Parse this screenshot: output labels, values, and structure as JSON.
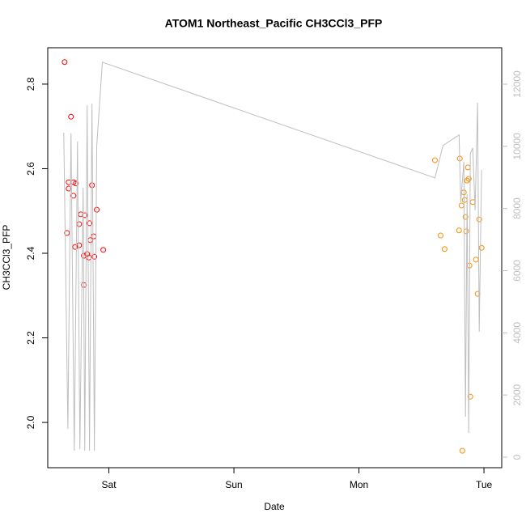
{
  "chart_data": {
    "type": "scatter",
    "title": "ATOM1 Northeast_Pacific CH3CCl3_PFP",
    "x_label": "Date",
    "y_label": "CH3CCl3_PFP",
    "xlim": [
      0.511,
      4.142
    ],
    "xticks": [
      {
        "value": 1,
        "label": "Sat"
      },
      {
        "value": 2,
        "label": "Sun"
      },
      {
        "value": 3,
        "label": "Mon"
      },
      {
        "value": 4,
        "label": "Tue"
      }
    ],
    "ylim": [
      1.893,
      2.886
    ],
    "yticks": [
      {
        "value": 2,
        "label": "2.0"
      },
      2.2,
      2.4,
      2.6,
      2.8
    ],
    "y2lim": [
      -339,
      13172
    ],
    "y2ticks": [
      0,
      2000,
      4000,
      6000,
      8000,
      10000,
      12000
    ],
    "y2_color": "#bebebe",
    "series": [
      {
        "color": "#ff0000",
        "x": [
          0.646,
          0.665,
          0.678,
          0.678,
          0.697,
          0.717,
          0.717,
          0.736,
          0.73,
          0.762,
          0.762,
          0.775,
          0.8,
          0.8,
          0.807,
          0.826,
          0.839,
          0.845,
          0.852,
          0.865,
          0.878,
          0.884,
          0.903,
          0.955
        ],
        "values": [
          2.852,
          2.448,
          2.568,
          2.553,
          2.723,
          2.568,
          2.536,
          2.565,
          2.415,
          2.419,
          2.469,
          2.492,
          2.394,
          2.325,
          2.49,
          2.398,
          2.39,
          2.471,
          2.431,
          2.561,
          2.44,
          2.392,
          2.503,
          2.408
        ]
      },
      {
        "color": "#ff8c00",
        "x": [
          3.608,
          3.653,
          3.685,
          3.801,
          3.807,
          3.82,
          3.839,
          3.846,
          3.852,
          3.858,
          3.865,
          3.871,
          3.878,
          3.884,
          3.891,
          3.91,
          3.936,
          3.949,
          3.962,
          3.981,
          3.827
        ],
        "values": [
          2.62,
          2.442,
          2.41,
          2.454,
          2.624,
          2.513,
          2.544,
          2.526,
          2.486,
          2.452,
          2.572,
          2.603,
          2.576,
          2.371,
          2.061,
          2.521,
          2.385,
          2.304,
          2.48,
          2.413,
          1.933
        ]
      },
      {
        "type": "line",
        "axis": "y2",
        "color": "#bebebe",
        "x": [
          0.639,
          0.672,
          0.697,
          0.723,
          0.749,
          0.768,
          0.794,
          0.807,
          0.826,
          0.845,
          0.865,
          0.884,
          0.903,
          0.948,
          3.608,
          3.672,
          3.801,
          3.814,
          3.839,
          3.852,
          3.865,
          3.878,
          3.891,
          3.91,
          3.929,
          3.949,
          3.962,
          3.981
        ],
        "values": [
          10443,
          911,
          10417,
          208,
          10156,
          260,
          8672,
          208,
          11328,
          208,
          11380,
          208,
          10026,
          12708,
          8984,
          10026,
          10365,
          8203,
          9505,
          1302,
          8464,
          781,
          9766,
          9948,
          7943,
          11406,
          4036,
          9245
        ]
      }
    ]
  }
}
